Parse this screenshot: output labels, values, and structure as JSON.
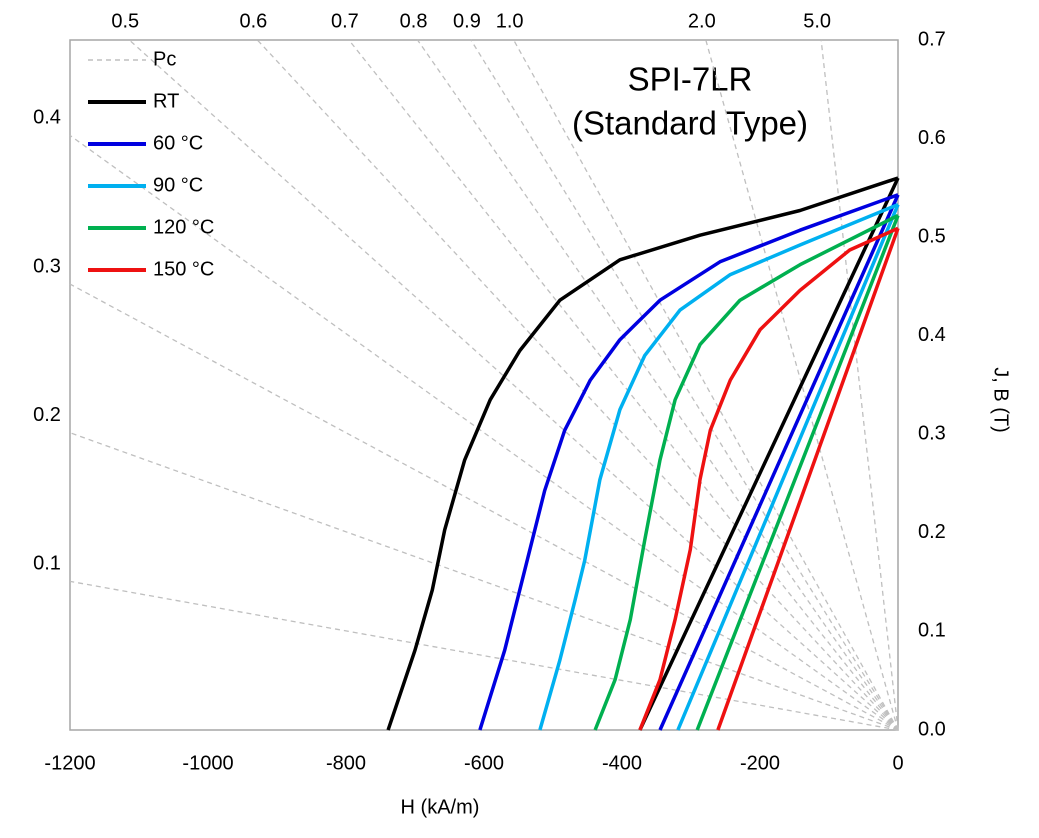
{
  "chart_data": {
    "type": "line",
    "title": "SPI-7LR",
    "subtitle": "(Standard Type)",
    "xlabel": "H (kA/m)",
    "ylabel": "J, B (T)",
    "xlim": [
      -1200,
      0
    ],
    "xticks": [
      -1200,
      -1000,
      -800,
      -600,
      -400,
      -200,
      0
    ],
    "ylim": [
      0,
      0.7
    ],
    "yticks": [
      {
        "value": 0,
        "label": "0.0"
      },
      0.1,
      0.2,
      0.3,
      0.4,
      0.5,
      0.6,
      0.7
    ],
    "permeance_lines": {
      "name": "Pc",
      "color": "#bfbfbf",
      "values": [
        0.1,
        0.2,
        0.3,
        0.4,
        0.5,
        0.6,
        0.7,
        0.8,
        0.9,
        {
          "value": 1,
          "label": "1.0"
        },
        {
          "value": 2,
          "label": "2.0"
        },
        {
          "value": 5,
          "label": "5.0"
        }
      ]
    },
    "series": [
      {
        "name": "RT",
        "color": "#000000",
        "x": [
          0,
          -142,
          -287,
          -403,
          -490,
          -548,
          -591,
          -628,
          -657,
          -675,
          -700,
          -739
        ],
        "values": [
          0.56,
          0.527,
          0.502,
          0.477,
          0.436,
          0.385,
          0.335,
          0.274,
          0.203,
          0.142,
          0.081,
          0
        ],
        "b_x": [
          -374,
          0
        ],
        "b_values": [
          0,
          0.56
        ]
      },
      {
        "name": "60 °C",
        "color": "#0000e0",
        "x": [
          0,
          -142,
          -258,
          -345,
          -403,
          -446,
          -483,
          -512,
          -541,
          -570,
          -606
        ],
        "values": [
          0.543,
          0.507,
          0.475,
          0.436,
          0.396,
          0.355,
          0.304,
          0.243,
          0.162,
          0.081,
          0
        ],
        "b_x": [
          -345,
          0
        ],
        "b_values": [
          0,
          0.543
        ]
      },
      {
        "name": "90 °C",
        "color": "#00b0f0",
        "x": [
          0,
          -142,
          -243,
          -316,
          -367,
          -403,
          -432,
          -454,
          -468,
          -490,
          -519
        ],
        "values": [
          0.533,
          0.492,
          0.462,
          0.426,
          0.38,
          0.325,
          0.254,
          0.172,
          0.132,
          0.071,
          0
        ],
        "b_x": [
          -319,
          0
        ],
        "b_values": [
          0,
          0.533
        ]
      },
      {
        "name": "120 °C",
        "color": "#00b050",
        "x": [
          0,
          -142,
          -229,
          -287,
          -323,
          -345,
          -367,
          -388,
          -410,
          -439
        ],
        "values": [
          0.522,
          0.472,
          0.436,
          0.391,
          0.335,
          0.274,
          0.193,
          0.112,
          0.051,
          0
        ],
        "b_x": [
          -291,
          0
        ],
        "b_values": [
          0,
          0.522
        ]
      },
      {
        "name": "150 °C",
        "color": "#ee1111",
        "x": [
          0,
          -70,
          -142,
          -200,
          -243,
          -272,
          -287,
          -301,
          -323,
          -345,
          -374
        ],
        "values": [
          0.509,
          0.487,
          0.446,
          0.406,
          0.355,
          0.304,
          0.254,
          0.183,
          0.112,
          0.051,
          0
        ],
        "b_x": [
          -261,
          0
        ],
        "b_values": [
          0,
          0.509
        ]
      }
    ]
  }
}
